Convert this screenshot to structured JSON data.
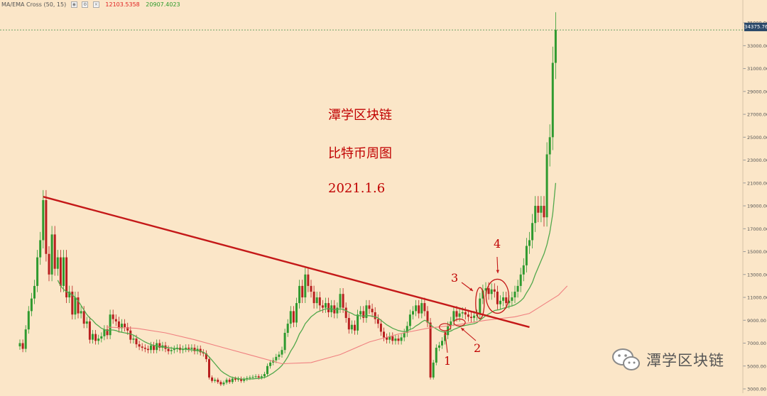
{
  "header": {
    "indicator_name": "MA/EMA Cross (50, 15)",
    "value1": "12103.5358",
    "value2": "20907.4023",
    "icon_eye": "eye-icon",
    "icon_settings": "gear-icon",
    "icon_close": "close-icon"
  },
  "annotations": {
    "line1": "潭学区块链",
    "line2": "比特币周图",
    "line3": "2021.1.6",
    "marks": [
      "1",
      "2",
      "3",
      "4"
    ]
  },
  "watermark": {
    "icon": "wechat-icon",
    "text": "潭学区块链"
  },
  "price_tag": "34375.76",
  "colors": {
    "background": "#fbe6c8",
    "up": "#2f9a2f",
    "down": "#b81f1f",
    "fast_ma": "#52a84c",
    "slow_ma": "#f08080",
    "trendline": "#c41818",
    "annotation": "#c00000"
  },
  "chart_data": {
    "type": "candlestick",
    "title": "",
    "xlabel": "",
    "ylabel": "",
    "ylim": [
      3000,
      36000
    ],
    "yticks": [
      3000,
      5000,
      7000,
      9000,
      11000,
      13000,
      15000,
      17000,
      19000,
      21000,
      23000,
      25000,
      27000,
      29000,
      31000,
      33000,
      35000
    ],
    "ytick_labels": [
      "3000.00",
      "5000.00",
      "7000.00",
      "9000.00",
      "11000.00",
      "13000.00",
      "15000.00",
      "17000.00",
      "19000.00",
      "21000.00",
      "23000.00",
      "25000.00",
      "27000.00",
      "29000.00",
      "31000.00",
      "33000.00",
      "35000.00"
    ],
    "current_price_line": 34375.76,
    "grid": false,
    "closes": [
      7000,
      6500,
      8200,
      9800,
      10900,
      12000,
      14500,
      16000,
      19500,
      14800,
      13000,
      16500,
      13500,
      14500,
      12000,
      14500,
      11000,
      11500,
      9500,
      11000,
      9600,
      9800,
      8700,
      8900,
      7300,
      7800,
      7200,
      7400,
      7600,
      8200,
      7700,
      9500,
      9100,
      8900,
      8300,
      8700,
      8400,
      8100,
      7300,
      7400,
      6900,
      6700,
      6600,
      6500,
      6400,
      6800,
      6400,
      7000,
      6600,
      6800,
      6500,
      6300,
      6400,
      6500,
      6600,
      6400,
      6500,
      6600,
      6500,
      6600,
      6300,
      6500,
      6200,
      6100,
      5600,
      4000,
      3700,
      3800,
      3600,
      3400,
      3550,
      3800,
      3600,
      3900,
      3800,
      3900,
      3700,
      3850,
      3950,
      4000,
      4050,
      4100,
      4000,
      4100,
      4300,
      5000,
      5300,
      5500,
      5800,
      6000,
      6400,
      7900,
      8700,
      9800,
      8800,
      10500,
      12000,
      11000,
      13000,
      12000,
      11500,
      10500,
      11000,
      10300,
      10100,
      10500,
      9700,
      10300,
      9600,
      10100,
      11300,
      10100,
      9200,
      8200,
      8600,
      8100,
      9500,
      9800,
      9200,
      10300,
      10000,
      9700,
      9100,
      8700,
      8000,
      7500,
      7300,
      7600,
      7200,
      7400,
      7200,
      7500,
      7900,
      8500,
      9500,
      9800,
      10300,
      9600,
      10500,
      9800,
      8800,
      4000,
      5300,
      6600,
      6800,
      7200,
      7700,
      8500,
      8900,
      9800,
      9300,
      9600,
      9700,
      9500,
      9300,
      9200,
      9400,
      9500,
      10900,
      11600,
      11800,
      11300,
      11700,
      11500,
      10400,
      10700,
      11000,
      10500,
      10700,
      11000,
      11500,
      12000,
      13000,
      13800,
      15500,
      16000,
      17500,
      19000,
      18400,
      19000,
      18000,
      23500,
      25000,
      31500,
      34375.76
    ],
    "fast_ma": [
      null,
      null,
      null,
      null,
      null,
      null,
      null,
      null,
      null,
      null,
      null,
      null,
      null,
      12500,
      12000,
      11700,
      11500,
      11400,
      11200,
      11000,
      10700,
      10300,
      9900,
      9500,
      9200,
      9000,
      8700,
      8500,
      8300,
      8200,
      8100,
      8150,
      8150,
      8100,
      8000,
      7950,
      7900,
      7850,
      7800,
      7700,
      7550,
      7400,
      7250,
      7100,
      6980,
      6880,
      6800,
      6750,
      6700,
      6680,
      6650,
      6600,
      6570,
      6540,
      6520,
      6500,
      6480,
      6460,
      6430,
      6410,
      6380,
      6350,
      6300,
      6200,
      6050,
      5800,
      5500,
      5200,
      4900,
      4600,
      4400,
      4250,
      4100,
      4000,
      3950,
      3900,
      3870,
      3860,
      3860,
      3870,
      3880,
      3900,
      3920,
      3950,
      4000,
      4100,
      4250,
      4400,
      4600,
      4800,
      5050,
      5400,
      5800,
      6300,
      6700,
      7200,
      7800,
      8200,
      8700,
      9000,
      9300,
      9500,
      9700,
      9800,
      9900,
      10000,
      10000,
      10000,
      9950,
      9950,
      10000,
      9950,
      9850,
      9700,
      9600,
      9450,
      9400,
      9400,
      9350,
      9400,
      9400,
      9350,
      9300,
      9200,
      9000,
      8800,
      8600,
      8450,
      8300,
      8200,
      8100,
      8050,
      8000,
      8050,
      8200,
      8300,
      8500,
      8650,
      8850,
      9000,
      8900,
      8600,
      8400,
      8250,
      8100,
      8000,
      7950,
      8000,
      8050,
      8200,
      8300,
      8400,
      8500,
      8550,
      8600,
      8650,
      8700,
      8800,
      9000,
      9200,
      9400,
      9550,
      9700,
      9850,
      9900,
      9950,
      10050,
      10100,
      10200,
      10250,
      10350,
      10500,
      10700,
      10950,
      11400,
      11800,
      12300,
      13000,
      13600,
      14200,
      14800,
      15600,
      16700,
      18300,
      21000
    ],
    "slow_ma": [
      null,
      null,
      null,
      null,
      null,
      null,
      null,
      null,
      null,
      null,
      null,
      null,
      null,
      null,
      null,
      null,
      null,
      null,
      null,
      null,
      null,
      null,
      null,
      null,
      null,
      null,
      null,
      null,
      null,
      null,
      null,
      null,
      null,
      null,
      null,
      null,
      null,
      null,
      null,
      null,
      null,
      null,
      null,
      null,
      null,
      null,
      null,
      null,
      null,
      null,
      null,
      null,
      null,
      null,
      null,
      null,
      null,
      null,
      null,
      null,
      null,
      null,
      null,
      null,
      null,
      null,
      null,
      null,
      null,
      null,
      null,
      null,
      null,
      null,
      null,
      null,
      null,
      null,
      null,
      null,
      null,
      null,
      null,
      null,
      null,
      null,
      null,
      null,
      null,
      null,
      null,
      null,
      null,
      null,
      null,
      null,
      null,
      null,
      null,
      null,
      null,
      null,
      null,
      null,
      null,
      null,
      null,
      null,
      null,
      null,
      null,
      null,
      null,
      null,
      null,
      null,
      null,
      null,
      null,
      null,
      null,
      null,
      null,
      null,
      null,
      null,
      null,
      null,
      null,
      null,
      null,
      null,
      null,
      null,
      null,
      null,
      null,
      null,
      null,
      null,
      null,
      null,
      null,
      null,
      null,
      null,
      null,
      null,
      null,
      null,
      null,
      null,
      null,
      null,
      null,
      null,
      null,
      null,
      null,
      null,
      null,
      null,
      null,
      null,
      null,
      null,
      null,
      null,
      null,
      null,
      null,
      null,
      null,
      null,
      null,
      null,
      null,
      null,
      null,
      null,
      null,
      null,
      null,
      null
    ],
    "slow_ma_points": [
      [
        30,
        8400
      ],
      [
        40,
        8300
      ],
      [
        50,
        7900
      ],
      [
        60,
        7300
      ],
      [
        70,
        6600
      ],
      [
        80,
        5900
      ],
      [
        90,
        5200
      ],
      [
        100,
        5300
      ],
      [
        110,
        6000
      ],
      [
        120,
        7100
      ],
      [
        130,
        7800
      ],
      [
        140,
        8300
      ],
      [
        150,
        8600
      ],
      [
        160,
        9000
      ],
      [
        170,
        9300
      ],
      [
        175,
        9600
      ],
      [
        180,
        10400
      ],
      [
        185,
        11200
      ],
      [
        188,
        12000
      ]
    ]
  }
}
